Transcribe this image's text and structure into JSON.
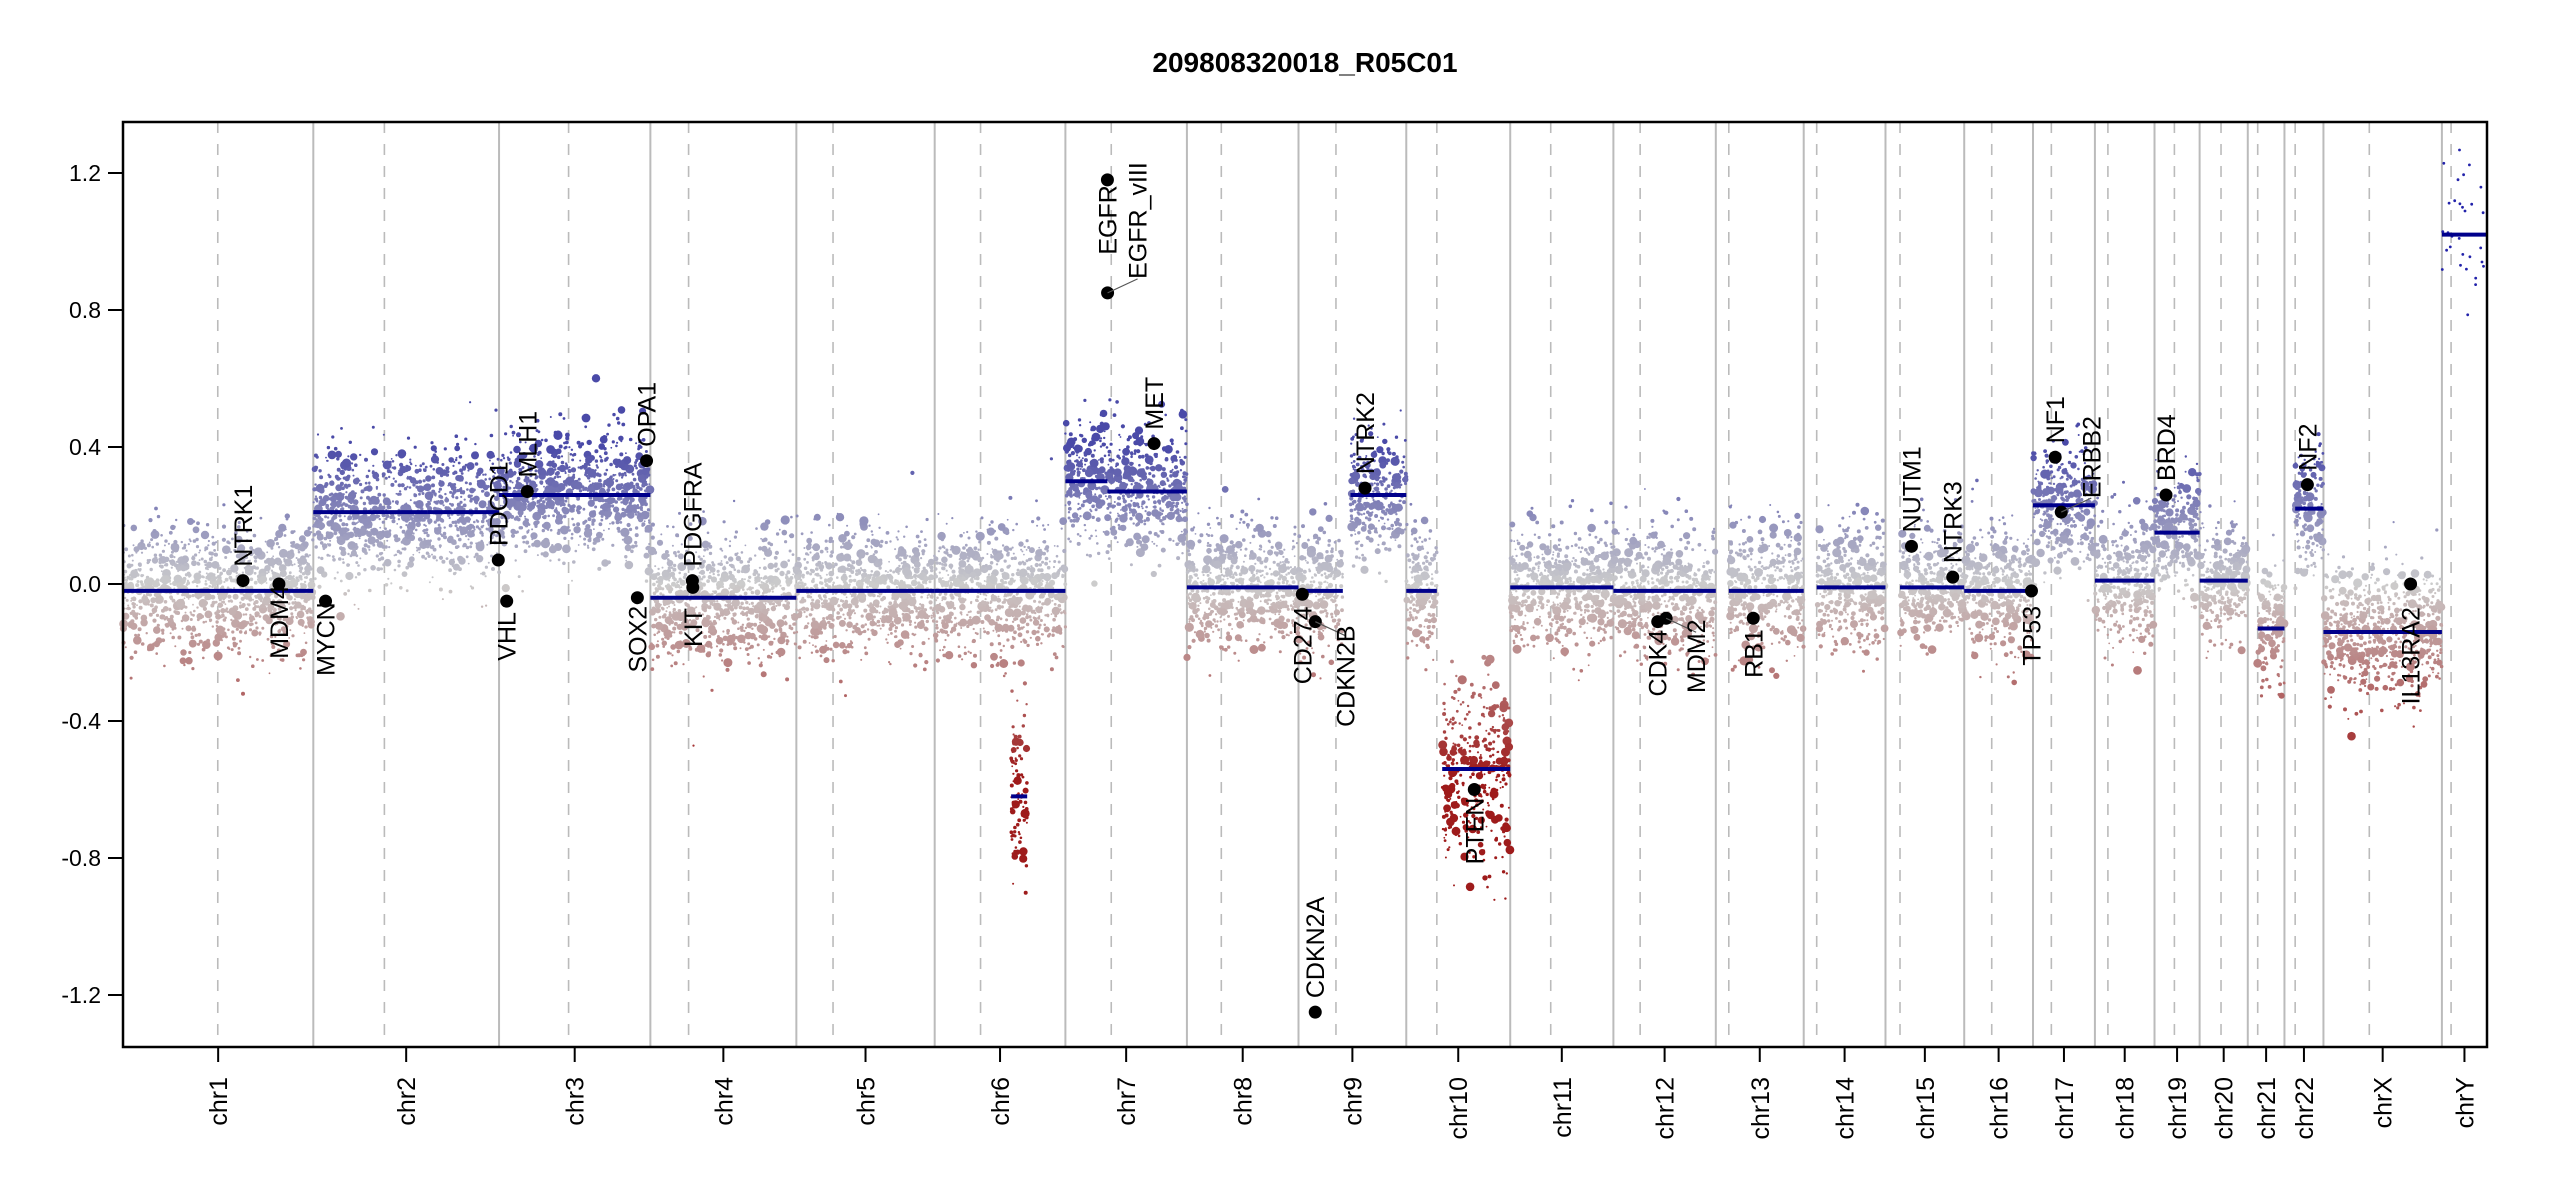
{
  "chart_data": {
    "type": "scatter",
    "title": "209808320018_R05C01",
    "xlabel": "",
    "ylabel": "",
    "ylim": [
      -1.35,
      1.35
    ],
    "yticks": [
      {
        "value": 1.2,
        "label": "1.2"
      },
      {
        "value": 0.8,
        "label": "0.8"
      },
      {
        "value": 0.4,
        "label": "0.4"
      },
      {
        "value": 0.0,
        "label": "0.0"
      },
      {
        "value": -0.4,
        "label": "-0.4"
      },
      {
        "value": -0.8,
        "label": "-0.8"
      },
      {
        "value": -1.2,
        "label": "-1.2"
      }
    ],
    "grid": "chromosome boundaries (solid) and centromeres (dashed)",
    "colors": {
      "gain": "#4a4aa8",
      "neutral": "#cccccc",
      "loss": "#9e1b1b",
      "segment": "#00008b",
      "gene": "#000000",
      "boundary": "#bbbbbb",
      "centromere": "#bbbbbb"
    },
    "chromosomes": [
      {
        "name": "chr1",
        "length": 249,
        "centromere": 124
      },
      {
        "name": "chr2",
        "length": 243,
        "centromere": 93
      },
      {
        "name": "chr3",
        "length": 198,
        "centromere": 91
      },
      {
        "name": "chr4",
        "length": 191,
        "centromere": 50
      },
      {
        "name": "chr5",
        "length": 181,
        "centromere": 48
      },
      {
        "name": "chr6",
        "length": 171,
        "centromere": 60
      },
      {
        "name": "chr7",
        "length": 159,
        "centromere": 60
      },
      {
        "name": "chr8",
        "length": 146,
        "centromere": 45
      },
      {
        "name": "chr9",
        "length": 141,
        "centromere": 49
      },
      {
        "name": "chr10",
        "length": 136,
        "centromere": 40
      },
      {
        "name": "chr11",
        "length": 135,
        "centromere": 53
      },
      {
        "name": "chr12",
        "length": 134,
        "centromere": 35
      },
      {
        "name": "chr13",
        "length": 115,
        "centromere": 17
      },
      {
        "name": "chr14",
        "length": 107,
        "centromere": 17
      },
      {
        "name": "chr15",
        "length": 103,
        "centromere": 19
      },
      {
        "name": "chr16",
        "length": 90,
        "centromere": 36
      },
      {
        "name": "chr17",
        "length": 81,
        "centromere": 24
      },
      {
        "name": "chr18",
        "length": 78,
        "centromere": 17
      },
      {
        "name": "chr19",
        "length": 59,
        "centromere": 26
      },
      {
        "name": "chr20",
        "length": 63,
        "centromere": 28
      },
      {
        "name": "chr21",
        "length": 48,
        "centromere": 13
      },
      {
        "name": "chr22",
        "length": 51,
        "centromere": 14
      },
      {
        "name": "chrX",
        "length": 155,
        "centromere": 60
      },
      {
        "name": "chrY",
        "length": 59,
        "centromere": 12
      }
    ],
    "segments": [
      {
        "chr": "chr1",
        "start": 0,
        "end": 249,
        "value": -0.02
      },
      {
        "chr": "chr2",
        "start": 0,
        "end": 150,
        "value": 0.21
      },
      {
        "chr": "chr2",
        "start": 150,
        "end": 243,
        "value": 0.21
      },
      {
        "chr": "chr3",
        "start": 0,
        "end": 198,
        "value": 0.26
      },
      {
        "chr": "chr4",
        "start": 0,
        "end": 191,
        "value": -0.04
      },
      {
        "chr": "chr5",
        "start": 0,
        "end": 181,
        "value": -0.02
      },
      {
        "chr": "chr6",
        "start": 0,
        "end": 171,
        "value": -0.02
      },
      {
        "chr": "chr6",
        "start": 100,
        "end": 121,
        "value": -0.62
      },
      {
        "chr": "chr7",
        "start": 0,
        "end": 55,
        "value": 0.3
      },
      {
        "chr": "chr7",
        "start": 55,
        "end": 159,
        "value": 0.27
      },
      {
        "chr": "chr8",
        "start": 0,
        "end": 146,
        "value": -0.01
      },
      {
        "chr": "chr9",
        "start": 0,
        "end": 58,
        "value": -0.02
      },
      {
        "chr": "chr9",
        "start": 68,
        "end": 141,
        "value": 0.26
      },
      {
        "chr": "chr10",
        "start": 0,
        "end": 40,
        "value": -0.02
      },
      {
        "chr": "chr10",
        "start": 47,
        "end": 136,
        "value": -0.54
      },
      {
        "chr": "chr11",
        "start": 0,
        "end": 135,
        "value": -0.01
      },
      {
        "chr": "chr12",
        "start": 0,
        "end": 134,
        "value": -0.02
      },
      {
        "chr": "chr13",
        "start": 17,
        "end": 115,
        "value": -0.02
      },
      {
        "chr": "chr14",
        "start": 17,
        "end": 107,
        "value": -0.01
      },
      {
        "chr": "chr15",
        "start": 19,
        "end": 103,
        "value": -0.01
      },
      {
        "chr": "chr16",
        "start": 0,
        "end": 90,
        "value": -0.02
      },
      {
        "chr": "chr17",
        "start": 0,
        "end": 81,
        "value": 0.23
      },
      {
        "chr": "chr18",
        "start": 0,
        "end": 78,
        "value": 0.01
      },
      {
        "chr": "chr19",
        "start": 0,
        "end": 59,
        "value": 0.15
      },
      {
        "chr": "chr20",
        "start": 0,
        "end": 63,
        "value": 0.01
      },
      {
        "chr": "chr21",
        "start": 13,
        "end": 48,
        "value": -0.13
      },
      {
        "chr": "chr22",
        "start": 14,
        "end": 51,
        "value": 0.22
      },
      {
        "chr": "chrX",
        "start": 0,
        "end": 155,
        "value": -0.14
      },
      {
        "chr": "chrY",
        "start": 0,
        "end": 59,
        "value": 1.02
      }
    ],
    "genes": [
      {
        "name": "NTRK1",
        "chr": "chr1",
        "pos": 157,
        "value": 0.01
      },
      {
        "name": "MDM4",
        "chr": "chr1",
        "pos": 204,
        "value": 0.0
      },
      {
        "name": "MYCN",
        "chr": "chr2",
        "pos": 16,
        "value": -0.05
      },
      {
        "name": "PDCD1",
        "chr": "chr2",
        "pos": 242,
        "value": 0.07
      },
      {
        "name": "VHL",
        "chr": "chr3",
        "pos": 10,
        "value": -0.05
      },
      {
        "name": "MLH1",
        "chr": "chr3",
        "pos": 37,
        "value": 0.27
      },
      {
        "name": "SOX2",
        "chr": "chr3",
        "pos": 181,
        "value": -0.04
      },
      {
        "name": "OPA1",
        "chr": "chr3",
        "pos": 193,
        "value": 0.36
      },
      {
        "name": "PDGFRA",
        "chr": "chr4",
        "pos": 55,
        "value": 0.01
      },
      {
        "name": "KIT",
        "chr": "chr4",
        "pos": 55.5,
        "value": -0.01
      },
      {
        "name": "EGFR",
        "chr": "chr7",
        "pos": 55,
        "value": 1.18
      },
      {
        "name": "EGFR_vIII",
        "chr": "chr7",
        "pos": 55.2,
        "value": 0.85
      },
      {
        "name": "MET",
        "chr": "chr7",
        "pos": 116,
        "value": 0.41
      },
      {
        "name": "CD274",
        "chr": "chr9",
        "pos": 5,
        "value": -0.03
      },
      {
        "name": "CDKN2A",
        "chr": "chr9",
        "pos": 21.9,
        "value": -1.25
      },
      {
        "name": "CDKN2B",
        "chr": "chr9",
        "pos": 22,
        "value": -0.11
      },
      {
        "name": "NTRK2",
        "chr": "chr9",
        "pos": 87,
        "value": 0.28
      },
      {
        "name": "PTEN",
        "chr": "chr10",
        "pos": 89,
        "value": -0.6
      },
      {
        "name": "CDK4",
        "chr": "chr12",
        "pos": 58,
        "value": -0.11
      },
      {
        "name": "MDM2",
        "chr": "chr12",
        "pos": 69,
        "value": -0.1
      },
      {
        "name": "RB1",
        "chr": "chr13",
        "pos": 49,
        "value": -0.1
      },
      {
        "name": "NUTM1",
        "chr": "chr15",
        "pos": 34,
        "value": 0.11
      },
      {
        "name": "NTRK3",
        "chr": "chr15",
        "pos": 88,
        "value": 0.02
      },
      {
        "name": "TP53",
        "chr": "chr16",
        "pos": 88,
        "value": -0.02
      },
      {
        "name": "NF1",
        "chr": "chr17",
        "pos": 29,
        "value": 0.37
      },
      {
        "name": "ERBB2",
        "chr": "chr17",
        "pos": 37,
        "value": 0.21
      },
      {
        "name": "BRD4",
        "chr": "chr19",
        "pos": 15,
        "value": 0.26
      },
      {
        "name": "NF2",
        "chr": "chr22",
        "pos": 30,
        "value": 0.29
      },
      {
        "name": "IL13RA2",
        "chr": "chrX",
        "pos": 114,
        "value": 0.0
      }
    ]
  }
}
